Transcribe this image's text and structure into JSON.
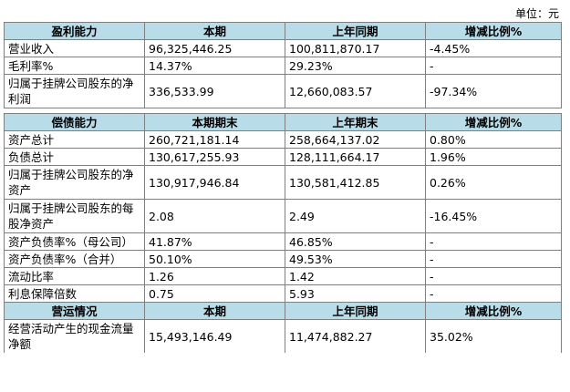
{
  "unit_label": "单位：元",
  "sections": [
    {
      "headers": [
        "盈利能力",
        "本期",
        "上年同期",
        "增减比例%"
      ],
      "rows": [
        [
          "营业收入",
          "96,325,446.25",
          "100,811,870.17",
          "-4.45%"
        ],
        [
          "毛利率%",
          "14.37%",
          "29.23%",
          "-"
        ],
        [
          "归属于挂牌公司股东的净利润",
          "336,533.99",
          "12,660,083.57",
          "-97.34%"
        ]
      ]
    },
    {
      "headers": [
        "偿债能力",
        "本期期末",
        "上年期末",
        "增减比例%"
      ],
      "rows": [
        [
          "资产总计",
          "260,721,181.14",
          "258,664,137.02",
          "0.80%"
        ],
        [
          "负债总计",
          "130,617,255.93",
          "128,111,664.17",
          "1.96%"
        ],
        [
          "归属于挂牌公司股东的净资产",
          "130,917,946.84",
          "130,581,412.85",
          "0.26%"
        ],
        [
          "归属于挂牌公司股东的每股净资产",
          "2.08",
          "2.49",
          "-16.45%"
        ],
        [
          "资产负债率%（母公司）",
          "41.87%",
          "46.85%",
          "-"
        ],
        [
          "资产负债率%（合并）",
          "50.10%",
          "49.53%",
          "-"
        ],
        [
          "流动比率",
          "1.26",
          "1.42",
          "-"
        ],
        [
          "利息保障倍数",
          "0.75",
          "5.93",
          "-"
        ]
      ]
    },
    {
      "headers": [
        "营运情况",
        "本期",
        "上年同期",
        "增减比例%"
      ],
      "rows": [
        [
          "经营活动产生的现金流量净额",
          "15,493,146.49",
          "11,474,882.27",
          "35.02%"
        ]
      ]
    }
  ],
  "colors": {
    "header_bg": "#b9dce9",
    "border": "#7f7f7f"
  }
}
